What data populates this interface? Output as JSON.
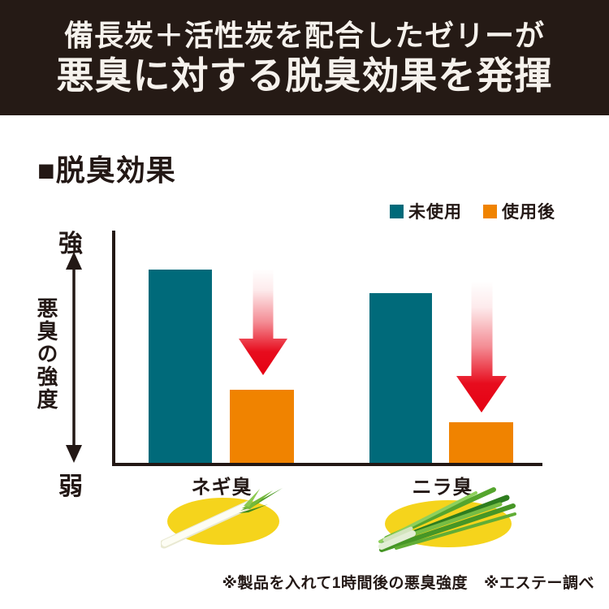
{
  "header": {
    "line1": "備長炭＋活性炭を配合したゼリーが",
    "line2": "悪臭に対する脱臭効果を発揮"
  },
  "section": {
    "title": "■脱臭効果"
  },
  "chart_data": {
    "type": "bar",
    "title": "脱臭効果",
    "categories": [
      "ネギ臭",
      "ニラ臭"
    ],
    "series": [
      {
        "name": "未使用",
        "color": "#006a7a",
        "values": [
          100,
          88
        ]
      },
      {
        "name": "使用後",
        "color": "#f08300",
        "values": [
          38,
          21
        ]
      }
    ],
    "ylabel": "悪臭の強度",
    "y_axis_top_label": "強",
    "y_axis_bottom_label": "弱",
    "ylim": [
      0,
      100
    ],
    "grid": false,
    "legend_position": "top-right",
    "annotations": [
      {
        "type": "decrease-arrow",
        "category": "ネギ臭",
        "color": "#e60012"
      },
      {
        "type": "decrease-arrow",
        "category": "ニラ臭",
        "color": "#e60012"
      }
    ],
    "category_icons": [
      "green-onion",
      "garlic-chives"
    ]
  },
  "footnotes": {
    "note1": "※製品を入れて1時間後の悪臭強度",
    "note2": "※エステー調べ"
  },
  "colors": {
    "header_bg": "#251a15",
    "header_text": "#f6f2ed",
    "ink": "#231815",
    "teal": "#006a7a",
    "orange": "#f08300",
    "arrow_red": "#e60012",
    "icon_yellow": "#f5d41c"
  }
}
